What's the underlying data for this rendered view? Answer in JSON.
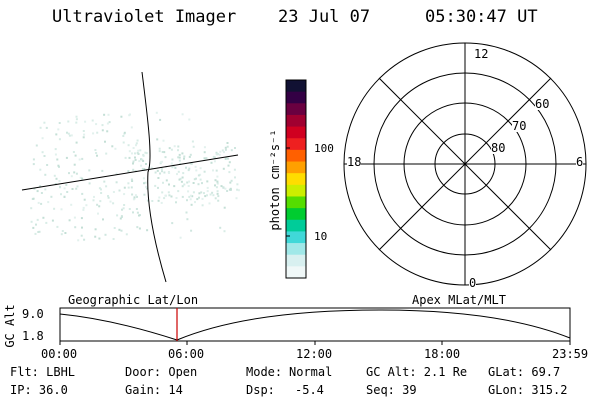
{
  "header": {
    "instrument": "Ultraviolet Imager",
    "date": "23 Jul 07",
    "time": "05:30:47 UT"
  },
  "colorbar": {
    "label": "photon cm⁻²s⁻¹",
    "tick_100": "100",
    "tick_10": "10",
    "colors": [
      "#111133",
      "#330044",
      "#6a0040",
      "#a00030",
      "#d00020",
      "#ee2020",
      "#ff6000",
      "#ffa000",
      "#ffdd00",
      "#ccee00",
      "#55dd00",
      "#00cc30",
      "#00cc99",
      "#40d8d8",
      "#a0e8e8",
      "#d8f0f0",
      "#f0f8f8"
    ]
  },
  "polar_plot": {
    "mlt_top": "12",
    "mlt_left": "18",
    "mlt_right": "6",
    "mlt_bottom": "0",
    "lat_60": "60",
    "lat_70": "70",
    "lat_80": "80"
  },
  "altitude_plot": {
    "left_label": "Geographic Lat/Lon",
    "right_label": "Apex MLat/MLT",
    "y_axis_label": "GC Alt",
    "y_max": "9.0",
    "y_min": "1.8",
    "time_ticks": [
      "00:00",
      "06:00",
      "12:00",
      "18:00",
      "23:59"
    ]
  },
  "footer": {
    "filter": "Flt: LBHL",
    "door": "Door: Open",
    "mode_label": "Mode:",
    "mode_value": "Normal",
    "gc_alt": "GC Alt: 2.1 Re",
    "glat": "GLat:  69.7",
    "ip": "IP: 36.0",
    "gain": "Gain: 14",
    "dsp_label": "Dsp:",
    "dsp_value": "-5.4",
    "seq": "Seq: 39",
    "glon": "GLon: 315.2"
  }
}
